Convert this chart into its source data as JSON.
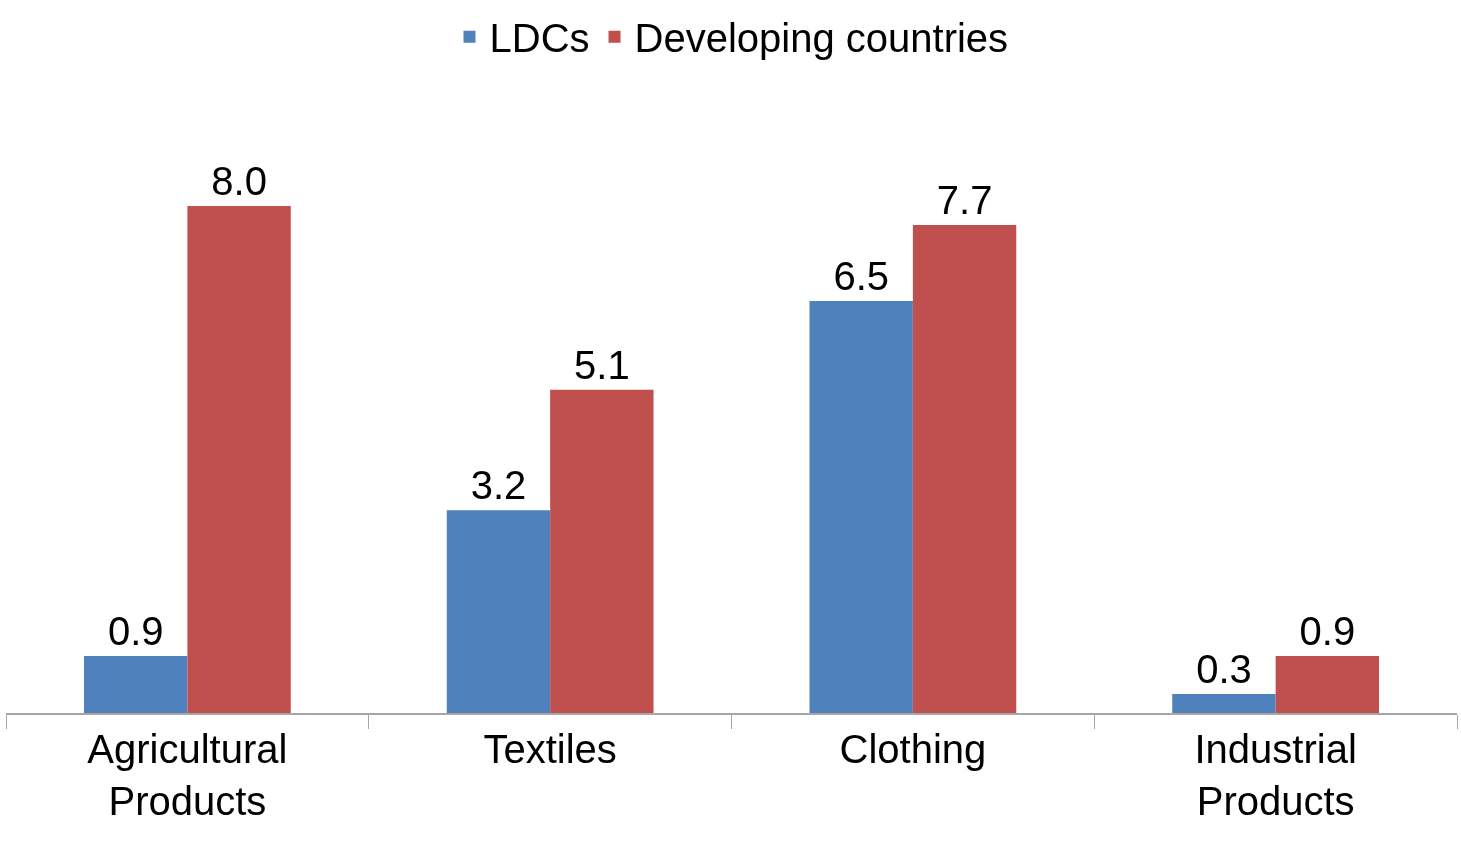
{
  "chart_data": {
    "type": "bar",
    "categories": [
      "Agricultural Products",
      "Textiles",
      "Clothing",
      "Industrial Products"
    ],
    "series": [
      {
        "name": "LDCs",
        "color": "#4f81bd",
        "values": [
          0.9,
          3.2,
          6.5,
          0.3
        ],
        "value_labels": [
          "0.9",
          "3.2",
          "6.5",
          "0.3"
        ]
      },
      {
        "name": "Developing countries",
        "color": "#c0504d",
        "values": [
          8.0,
          5.1,
          7.7,
          0.9
        ],
        "value_labels": [
          "8.0",
          "5.1",
          "7.7",
          "0.9"
        ]
      }
    ],
    "legend": "top",
    "grid": false,
    "tick_labels": "x"
  }
}
